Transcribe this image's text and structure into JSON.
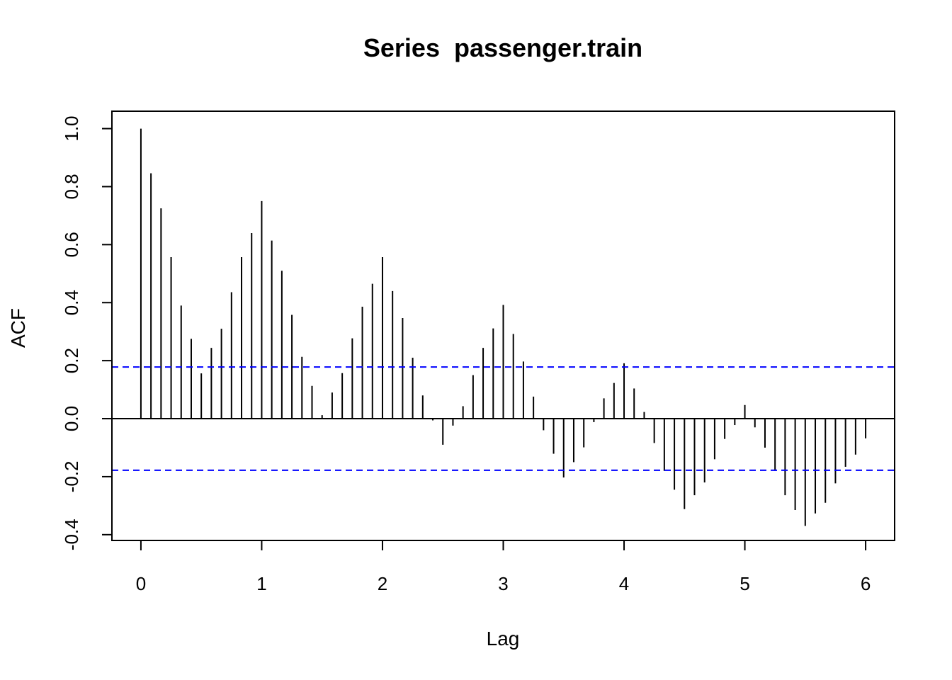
{
  "chart_data": {
    "type": "bar",
    "title": "Series  passenger.train",
    "xlabel": "Lag",
    "ylabel": "ACF",
    "xlim": [
      -0.24,
      6.24
    ],
    "ylim": [
      -0.42,
      1.06
    ],
    "x_ticks": [
      "0",
      "1",
      "2",
      "3",
      "4",
      "5",
      "6"
    ],
    "y_ticks": [
      "-0.4",
      "-0.2",
      "0.0",
      "0.2",
      "0.4",
      "0.6",
      "0.8",
      "1.0"
    ],
    "confidence_bound": 0.178,
    "colors": {
      "bars": "#000000",
      "confidence_lines": "#0000ff",
      "frame": "#000000"
    },
    "lags": [
      0,
      0.0833,
      0.1667,
      0.25,
      0.3333,
      0.4167,
      0.5,
      0.5833,
      0.6667,
      0.75,
      0.8333,
      0.9167,
      1,
      1.0833,
      1.1667,
      1.25,
      1.3333,
      1.4167,
      1.5,
      1.5833,
      1.6667,
      1.75,
      1.8333,
      1.9167,
      2,
      2.0833,
      2.1667,
      2.25,
      2.3333,
      2.4167,
      2.5,
      2.5833,
      2.6667,
      2.75,
      2.8333,
      2.9167,
      3,
      3.0833,
      3.1667,
      3.25,
      3.3333,
      3.4167,
      3.5,
      3.5833,
      3.6667,
      3.75,
      3.8333,
      3.9167,
      4,
      4.0833,
      4.1667,
      4.25,
      4.3333,
      4.4167,
      4.5,
      4.5833,
      4.6667,
      4.75,
      4.8333,
      4.9167,
      5,
      5.0833,
      5.1667,
      5.25,
      5.3333,
      5.4167,
      5.5,
      5.5833,
      5.6667,
      5.75,
      5.8333,
      5.9167,
      6
    ],
    "acf": [
      1.0,
      0.846,
      0.725,
      0.557,
      0.39,
      0.275,
      0.156,
      0.244,
      0.31,
      0.436,
      0.557,
      0.64,
      0.75,
      0.614,
      0.51,
      0.358,
      0.213,
      0.113,
      0.012,
      0.09,
      0.157,
      0.277,
      0.386,
      0.465,
      0.557,
      0.44,
      0.347,
      0.21,
      0.08,
      -0.006,
      -0.09,
      -0.024,
      0.043,
      0.15,
      0.244,
      0.311,
      0.392,
      0.292,
      0.197,
      0.076,
      -0.04,
      -0.121,
      -0.203,
      -0.15,
      -0.099,
      -0.012,
      0.07,
      0.123,
      0.191,
      0.104,
      0.023,
      -0.084,
      -0.18,
      -0.245,
      -0.312,
      -0.264,
      -0.22,
      -0.14,
      -0.07,
      -0.022,
      0.047,
      -0.03,
      -0.1,
      -0.18,
      -0.264,
      -0.315,
      -0.37,
      -0.327,
      -0.29,
      -0.223,
      -0.166,
      -0.124,
      -0.068
    ]
  }
}
